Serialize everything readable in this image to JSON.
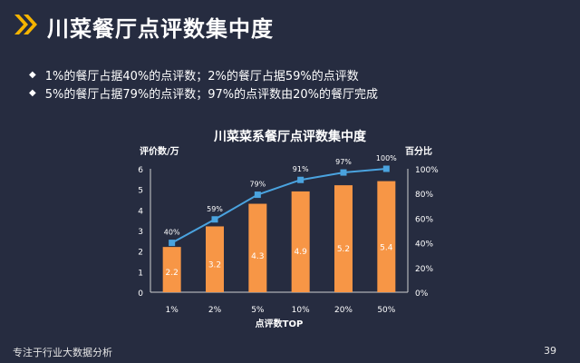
{
  "slide": {
    "title": "川菜餐厅点评数集中度",
    "bullets": [
      "1%的餐厅占据40%的点评数；2%的餐厅占据59%的点评数",
      "5%的餐厅占据79%的点评数；97%的点评数由20%的餐厅完成"
    ],
    "footer_text": "专注于行业大数据分析",
    "page_number": "39"
  },
  "colors": {
    "accent": "#f5b400",
    "bar": "#f79646",
    "line": "#4aa3df",
    "background": "#262c40"
  },
  "chart_data": {
    "type": "bar",
    "title": "川菜菜系餐厅点评数集中度",
    "xlabel": "点评数TOP",
    "ylabel": "评价数/万",
    "y2label": "百分比",
    "categories": [
      "1%",
      "2%",
      "5%",
      "10%",
      "20%",
      "50%"
    ],
    "ylim": [
      0,
      6
    ],
    "yticks": [
      "0",
      "1",
      "2",
      "3",
      "4",
      "5",
      "6"
    ],
    "y2lim": [
      0,
      100
    ],
    "y2ticks": [
      "0%",
      "20%",
      "40%",
      "60%",
      "80%",
      "100%"
    ],
    "series": [
      {
        "type": "bar",
        "values": [
          2.2,
          3.2,
          4.3,
          4.9,
          5.2,
          5.4
        ],
        "labels": [
          "2.2",
          "3.2",
          "4.3",
          "4.9",
          "5.2",
          "5.4"
        ]
      },
      {
        "type": "line",
        "values": [
          40,
          59,
          79,
          91,
          97,
          100
        ],
        "labels": [
          "40%",
          "59%",
          "79%",
          "91%",
          "97%",
          "100%"
        ]
      }
    ]
  }
}
